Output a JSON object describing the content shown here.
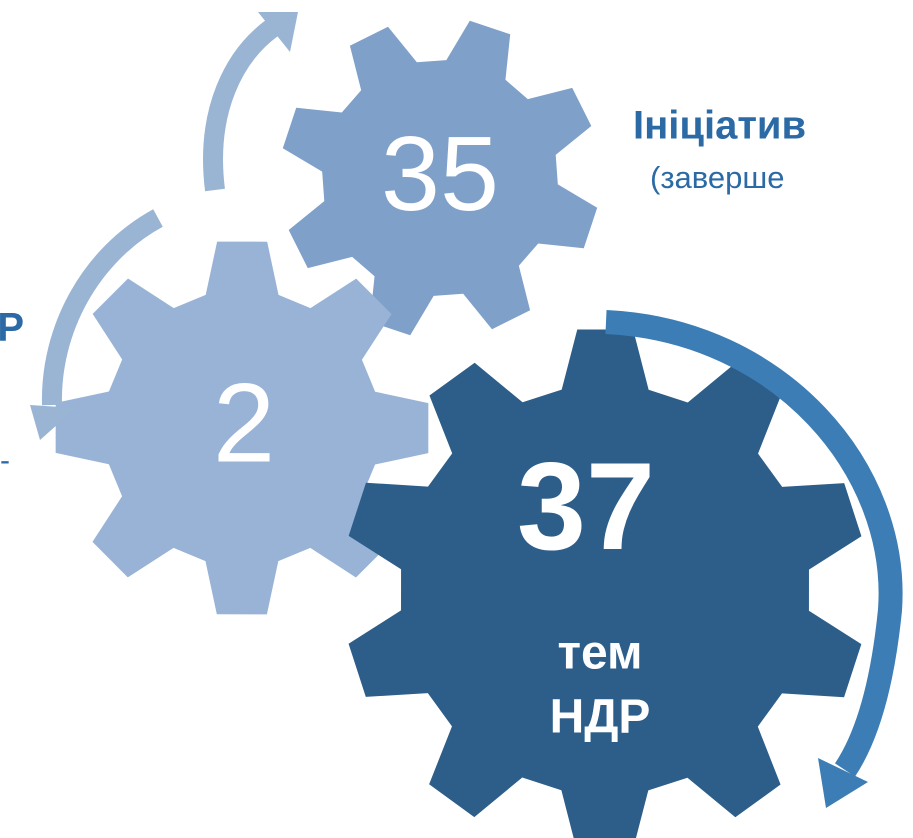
{
  "gears": [
    {
      "label": "35"
    },
    {
      "label": "2"
    },
    {
      "label": "37",
      "sublabel_1": "тем",
      "sublabel_2": "НДР"
    }
  ],
  "right_text": {
    "title": "Ініціатив",
    "subtitle": "(заверше"
  },
  "left_text": {
    "title": "Р",
    "subtitle": "-"
  }
}
